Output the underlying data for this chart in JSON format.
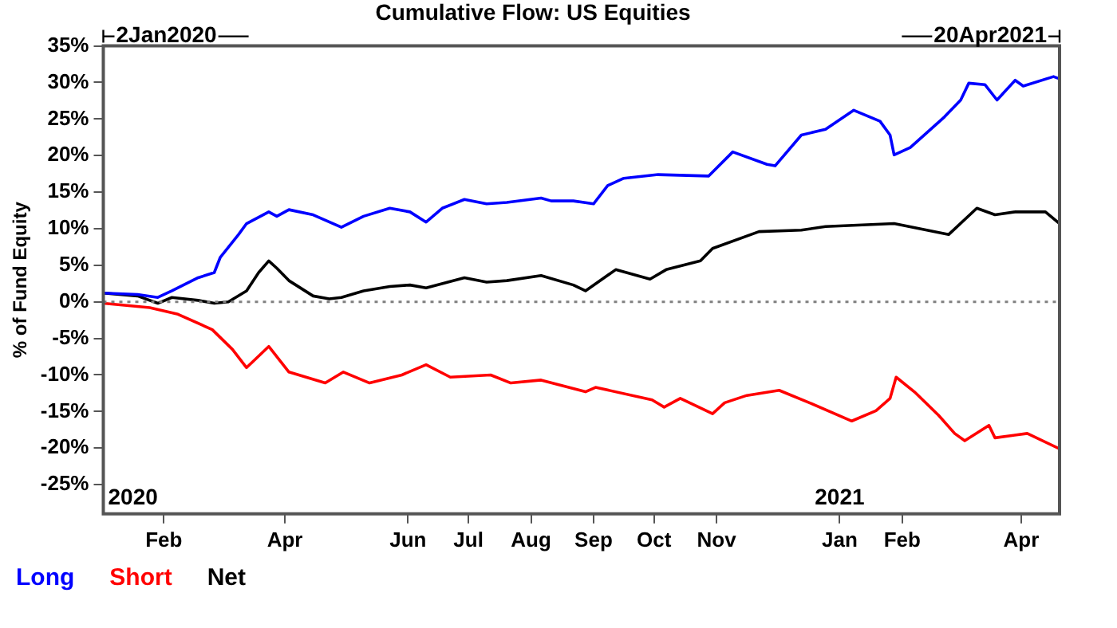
{
  "chart_data": {
    "type": "line",
    "title": "Cumulative Flow: US Equities",
    "ylabel": "% of Fund Equity",
    "xlim": [
      "2020-01-02",
      "2021-04-20"
    ],
    "xticks": [
      {
        "value": "2020-02-01",
        "label": "Feb"
      },
      {
        "value": "2020-04-01",
        "label": "Apr"
      },
      {
        "value": "2020-06-01",
        "label": "Jun"
      },
      {
        "value": "2020-07-01",
        "label": "Jul"
      },
      {
        "value": "2020-08-01",
        "label": "Aug"
      },
      {
        "value": "2020-09-01",
        "label": "Sep"
      },
      {
        "value": "2020-10-01",
        "label": "Oct"
      },
      {
        "value": "2020-11-01",
        "label": "Nov"
      },
      {
        "value": "2021-01-01",
        "label": "Jan"
      },
      {
        "value": "2021-02-01",
        "label": "Feb"
      },
      {
        "value": "2021-04-01",
        "label": "Apr"
      }
    ],
    "ylim": [
      -29,
      35
    ],
    "yticks": [
      {
        "value": -25,
        "label": "-25%"
      },
      {
        "value": -20,
        "label": "-20%"
      },
      {
        "value": -15,
        "label": "-15%"
      },
      {
        "value": -10,
        "label": "-10%"
      },
      {
        "value": -5,
        "label": "-5%"
      },
      {
        "value": 0,
        "label": "0%"
      },
      {
        "value": 5,
        "label": "5%"
      },
      {
        "value": 10,
        "label": "10%"
      },
      {
        "value": 15,
        "label": "15%"
      },
      {
        "value": 20,
        "label": "20%"
      },
      {
        "value": 25,
        "label": "25%"
      },
      {
        "value": 30,
        "label": "30%"
      },
      {
        "value": 35,
        "label": "35%"
      }
    ],
    "grid": false,
    "legend": "bottom left",
    "marker": "none",
    "line_style": "solid",
    "ref_lines": [
      {
        "axis": "y",
        "value": 0,
        "color": "#808080",
        "line_style": "dotted"
      }
    ],
    "annotations": [
      "2Jan2020",
      "20Apr2021",
      "2020",
      "2021"
    ],
    "series": [
      {
        "name": "Long",
        "color": "#0000ff",
        "x": [
          "2020-01-02",
          "2020-01-19",
          "2020-01-29",
          "2020-02-05",
          "2020-02-18",
          "2020-02-26",
          "2020-02-29",
          "2020-03-09",
          "2020-03-13",
          "2020-03-24",
          "2020-03-28",
          "2020-04-03",
          "2020-04-15",
          "2020-04-29",
          "2020-05-10",
          "2020-05-23",
          "2020-06-02",
          "2020-06-10",
          "2020-06-18",
          "2020-06-29",
          "2020-07-10",
          "2020-07-20",
          "2020-08-06",
          "2020-08-11",
          "2020-08-22",
          "2020-09-01",
          "2020-09-08",
          "2020-09-16",
          "2020-10-03",
          "2020-10-28",
          "2020-11-09",
          "2020-11-26",
          "2020-11-30",
          "2020-12-13",
          "2020-12-25",
          "2021-01-08",
          "2021-01-21",
          "2021-01-26",
          "2021-01-28",
          "2021-02-05",
          "2021-02-22",
          "2021-03-02",
          "2021-03-06",
          "2021-03-14",
          "2021-03-20",
          "2021-03-29",
          "2021-04-02",
          "2021-04-17",
          "2021-04-20"
        ],
        "values": [
          1.2,
          1.0,
          0.6,
          1.5,
          3.3,
          4.0,
          6.1,
          9.2,
          10.7,
          12.3,
          11.7,
          12.6,
          11.9,
          10.2,
          11.7,
          12.8,
          12.3,
          10.9,
          12.8,
          14.0,
          13.4,
          13.6,
          14.2,
          13.8,
          13.8,
          13.4,
          15.9,
          16.9,
          17.4,
          17.2,
          20.5,
          18.8,
          18.6,
          22.8,
          23.6,
          26.2,
          24.7,
          22.8,
          20.1,
          21.1,
          25.3,
          27.6,
          29.9,
          29.7,
          27.6,
          30.3,
          29.5,
          30.8,
          30.5
        ]
      },
      {
        "name": "Short",
        "color": "#ff0000",
        "x": [
          "2020-01-02",
          "2020-01-25",
          "2020-02-08",
          "2020-02-25",
          "2020-03-06",
          "2020-03-13",
          "2020-03-24",
          "2020-04-03",
          "2020-04-21",
          "2020-04-30",
          "2020-05-13",
          "2020-05-29",
          "2020-06-10",
          "2020-06-22",
          "2020-07-12",
          "2020-07-22",
          "2020-08-06",
          "2020-08-28",
          "2020-09-02",
          "2020-09-30",
          "2020-10-06",
          "2020-10-14",
          "2020-10-30",
          "2020-11-05",
          "2020-11-16",
          "2020-12-02",
          "2020-12-17",
          "2021-01-07",
          "2021-01-19",
          "2021-01-26",
          "2021-01-29",
          "2021-02-07",
          "2021-02-19",
          "2021-02-27",
          "2021-03-04",
          "2021-03-16",
          "2021-03-19",
          "2021-04-04",
          "2021-04-20"
        ],
        "values": [
          -0.2,
          -0.8,
          -1.7,
          -3.8,
          -6.5,
          -9.0,
          -6.1,
          -9.6,
          -11.1,
          -9.6,
          -11.1,
          -10.0,
          -8.6,
          -10.3,
          -10.0,
          -11.1,
          -10.7,
          -12.3,
          -11.7,
          -13.4,
          -14.4,
          -13.2,
          -15.3,
          -13.8,
          -12.8,
          -12.1,
          -13.8,
          -16.3,
          -14.9,
          -13.2,
          -10.3,
          -12.3,
          -15.5,
          -18.0,
          -19.0,
          -16.9,
          -18.6,
          -18.0,
          -20.1
        ]
      },
      {
        "name": "Net",
        "color": "#000000",
        "x": [
          "2020-01-02",
          "2020-01-19",
          "2020-01-29",
          "2020-02-05",
          "2020-02-18",
          "2020-02-26",
          "2020-03-04",
          "2020-03-13",
          "2020-03-19",
          "2020-03-24",
          "2020-03-28",
          "2020-04-03",
          "2020-04-15",
          "2020-04-23",
          "2020-04-29",
          "2020-05-10",
          "2020-05-23",
          "2020-06-02",
          "2020-06-10",
          "2020-06-29",
          "2020-07-10",
          "2020-07-20",
          "2020-08-06",
          "2020-08-22",
          "2020-08-28",
          "2020-09-12",
          "2020-09-29",
          "2020-10-07",
          "2020-10-24",
          "2020-10-30",
          "2020-11-22",
          "2020-12-13",
          "2020-12-25",
          "2021-01-28",
          "2021-02-24",
          "2021-03-10",
          "2021-03-19",
          "2021-03-29",
          "2021-04-13",
          "2021-04-20"
        ],
        "values": [
          1.2,
          0.8,
          -0.2,
          0.6,
          0.2,
          -0.2,
          0,
          1.5,
          4.0,
          5.6,
          4.6,
          2.9,
          0.8,
          0.4,
          0.6,
          1.5,
          2.1,
          2.3,
          1.9,
          3.3,
          2.7,
          2.9,
          3.6,
          2.3,
          1.5,
          4.4,
          3.1,
          4.4,
          5.6,
          7.3,
          9.6,
          9.8,
          10.3,
          10.7,
          9.2,
          12.8,
          11.9,
          12.3,
          12.3,
          10.7
        ]
      }
    ]
  }
}
